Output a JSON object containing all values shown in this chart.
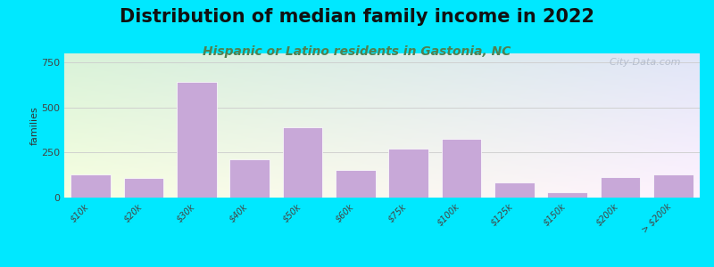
{
  "title": "Distribution of median family income in 2022",
  "subtitle": "Hispanic or Latino residents in Gastonia, NC",
  "categories": [
    "$10k",
    "$20k",
    "$30k",
    "$40k",
    "$50k",
    "$60k",
    "$75k",
    "$100k",
    "$125k",
    "$150k",
    "$200k",
    "> $200k"
  ],
  "values": [
    130,
    110,
    640,
    210,
    390,
    155,
    270,
    325,
    85,
    30,
    115,
    130
  ],
  "bar_color": "#c8a8d8",
  "ylabel": "families",
  "ylim": [
    0,
    800
  ],
  "yticks": [
    0,
    250,
    500,
    750
  ],
  "background_outer": "#00e8ff",
  "grid_color": "#cccccc",
  "title_fontsize": 15,
  "subtitle_fontsize": 10,
  "subtitle_color": "#508050",
  "watermark": "  City-Data.com"
}
